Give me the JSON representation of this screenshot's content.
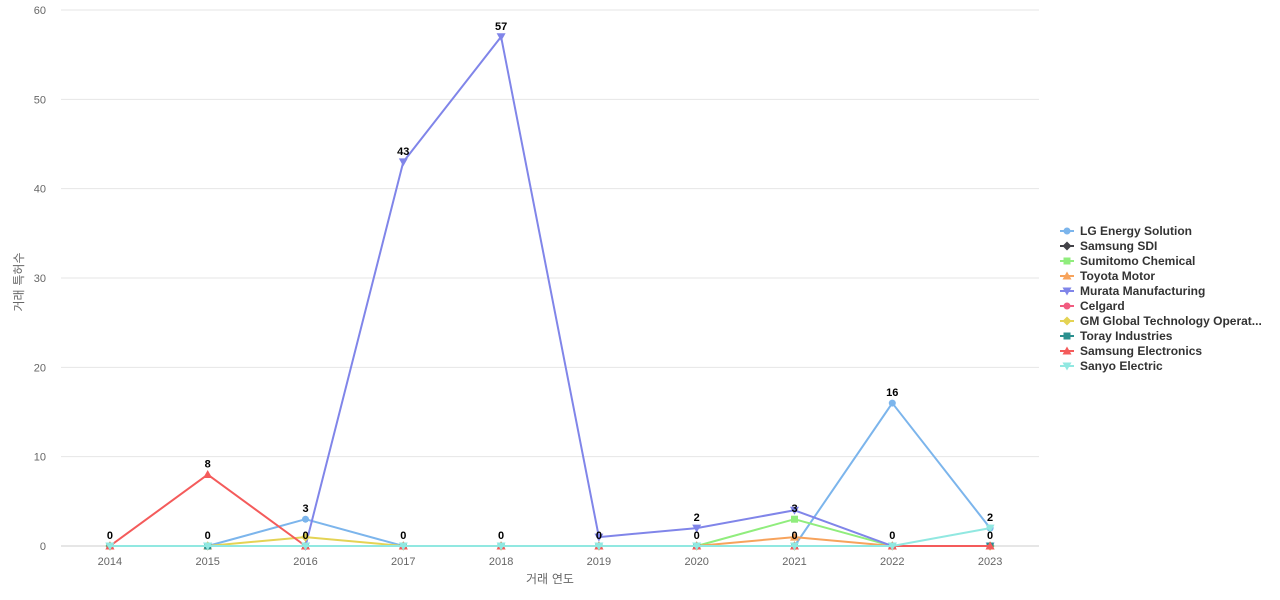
{
  "chart_data": {
    "type": "line",
    "title": "",
    "xlabel": "거래 연도",
    "ylabel": "거래 특허수",
    "ylim": [
      0,
      60
    ],
    "yticks": [
      0,
      10,
      20,
      30,
      40,
      50,
      60
    ],
    "grid": true,
    "legend_position": "right",
    "categories": [
      "2014",
      "2015",
      "2016",
      "2017",
      "2018",
      "2019",
      "2020",
      "2021",
      "2022",
      "2023"
    ],
    "series": [
      {
        "name": "LG Energy Solution",
        "color": "#7cb5ec",
        "marker": "circle",
        "values": [
          0,
          0,
          3,
          0,
          0,
          0,
          0,
          0,
          16,
          2
        ]
      },
      {
        "name": "Samsung SDI",
        "color": "#434348",
        "marker": "diamond",
        "values": [
          0,
          0,
          0,
          0,
          0,
          0,
          0,
          0,
          0,
          0
        ]
      },
      {
        "name": "Sumitomo Chemical",
        "color": "#90ed7d",
        "marker": "square",
        "values": [
          0,
          0,
          0,
          0,
          0,
          0,
          0,
          3,
          0,
          0
        ]
      },
      {
        "name": "Toyota Motor",
        "color": "#f7a35c",
        "marker": "triangle",
        "values": [
          0,
          0,
          0,
          0,
          0,
          0,
          0,
          1,
          0,
          0
        ]
      },
      {
        "name": "Murata Manufacturing",
        "color": "#8085e9",
        "marker": "triangle-down",
        "values": [
          0,
          0,
          0,
          43,
          57,
          1,
          2,
          4,
          0,
          0
        ]
      },
      {
        "name": "Celgard",
        "color": "#f15c80",
        "marker": "circle",
        "values": [
          0,
          0,
          0,
          0,
          0,
          0,
          0,
          0,
          0,
          0
        ]
      },
      {
        "name": "GM Global Technology Operat...",
        "color": "#e4d354",
        "marker": "diamond",
        "values": [
          0,
          0,
          1,
          0,
          0,
          0,
          0,
          0,
          0,
          0
        ]
      },
      {
        "name": "Toray Industries",
        "color": "#2b908f",
        "marker": "square",
        "values": [
          0,
          0,
          0,
          0,
          0,
          0,
          0,
          0,
          0,
          0
        ]
      },
      {
        "name": "Samsung Electronics",
        "color": "#f45b5b",
        "marker": "triangle",
        "values": [
          0,
          8,
          0,
          0,
          0,
          0,
          0,
          0,
          0,
          0
        ]
      },
      {
        "name": "Sanyo Electric",
        "color": "#91e8e1",
        "marker": "triangle-down",
        "values": [
          0,
          0,
          0,
          0,
          0,
          0,
          0,
          0,
          0,
          2
        ]
      }
    ],
    "data_labels": [
      {
        "category": "2014",
        "text": "0"
      },
      {
        "category": "2015",
        "text": "8"
      },
      {
        "category": "2015",
        "text": "0"
      },
      {
        "category": "2016",
        "text": "3"
      },
      {
        "category": "2016",
        "text": "0"
      },
      {
        "category": "2017",
        "text": "43"
      },
      {
        "category": "2017",
        "text": "0"
      },
      {
        "category": "2018",
        "text": "57"
      },
      {
        "category": "2018",
        "text": "0"
      },
      {
        "category": "2019",
        "text": "0"
      },
      {
        "category": "2020",
        "text": "2"
      },
      {
        "category": "2020",
        "text": "0"
      },
      {
        "category": "2021",
        "text": "3"
      },
      {
        "category": "2021",
        "text": "0"
      },
      {
        "category": "2022",
        "text": "16"
      },
      {
        "category": "2022",
        "text": "0"
      },
      {
        "category": "2023",
        "text": "2"
      },
      {
        "category": "2023",
        "text": "0"
      }
    ]
  }
}
